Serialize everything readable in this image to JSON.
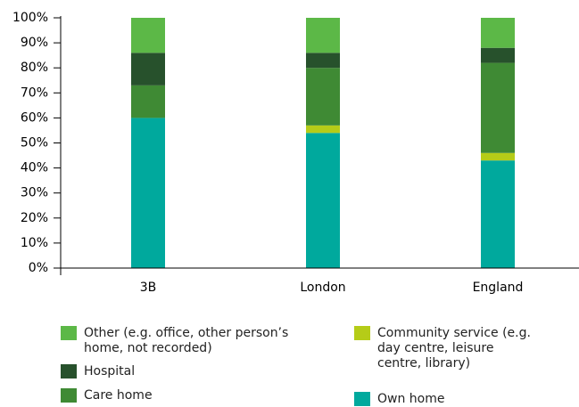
{
  "chart_data": {
    "type": "stacked-bar",
    "categories": [
      "3B",
      "London",
      "England"
    ],
    "series": [
      {
        "name": "Own home",
        "color": "#00a99d",
        "values": [
          60,
          54,
          43
        ]
      },
      {
        "name": "Community service (e.g. day centre, leisure centre, library)",
        "color": "#b5cc18",
        "values": [
          0,
          3,
          3
        ]
      },
      {
        "name": "Care home",
        "color": "#3f8a34",
        "values": [
          13,
          23,
          36
        ]
      },
      {
        "name": "Hospital",
        "color": "#27512c",
        "values": [
          13,
          6,
          6
        ]
      },
      {
        "name": "Other (e.g. office, other person’s home, not recorded)",
        "color": "#5cb847",
        "values": [
          14,
          14,
          12
        ]
      }
    ],
    "ylim": [
      0,
      100
    ],
    "yticks": [
      {
        "value": 0,
        "label": "0%"
      },
      {
        "value": 10,
        "label": "10%"
      },
      {
        "value": 20,
        "label": "20%"
      },
      {
        "value": 30,
        "label": "30%"
      },
      {
        "value": 40,
        "label": "40%"
      },
      {
        "value": 50,
        "label": "50%"
      },
      {
        "value": 60,
        "label": "60%"
      },
      {
        "value": 70,
        "label": "70%"
      },
      {
        "value": 80,
        "label": "80%"
      },
      {
        "value": 90,
        "label": "90%"
      },
      {
        "value": 100,
        "label": "100%"
      }
    ],
    "grid": false
  }
}
